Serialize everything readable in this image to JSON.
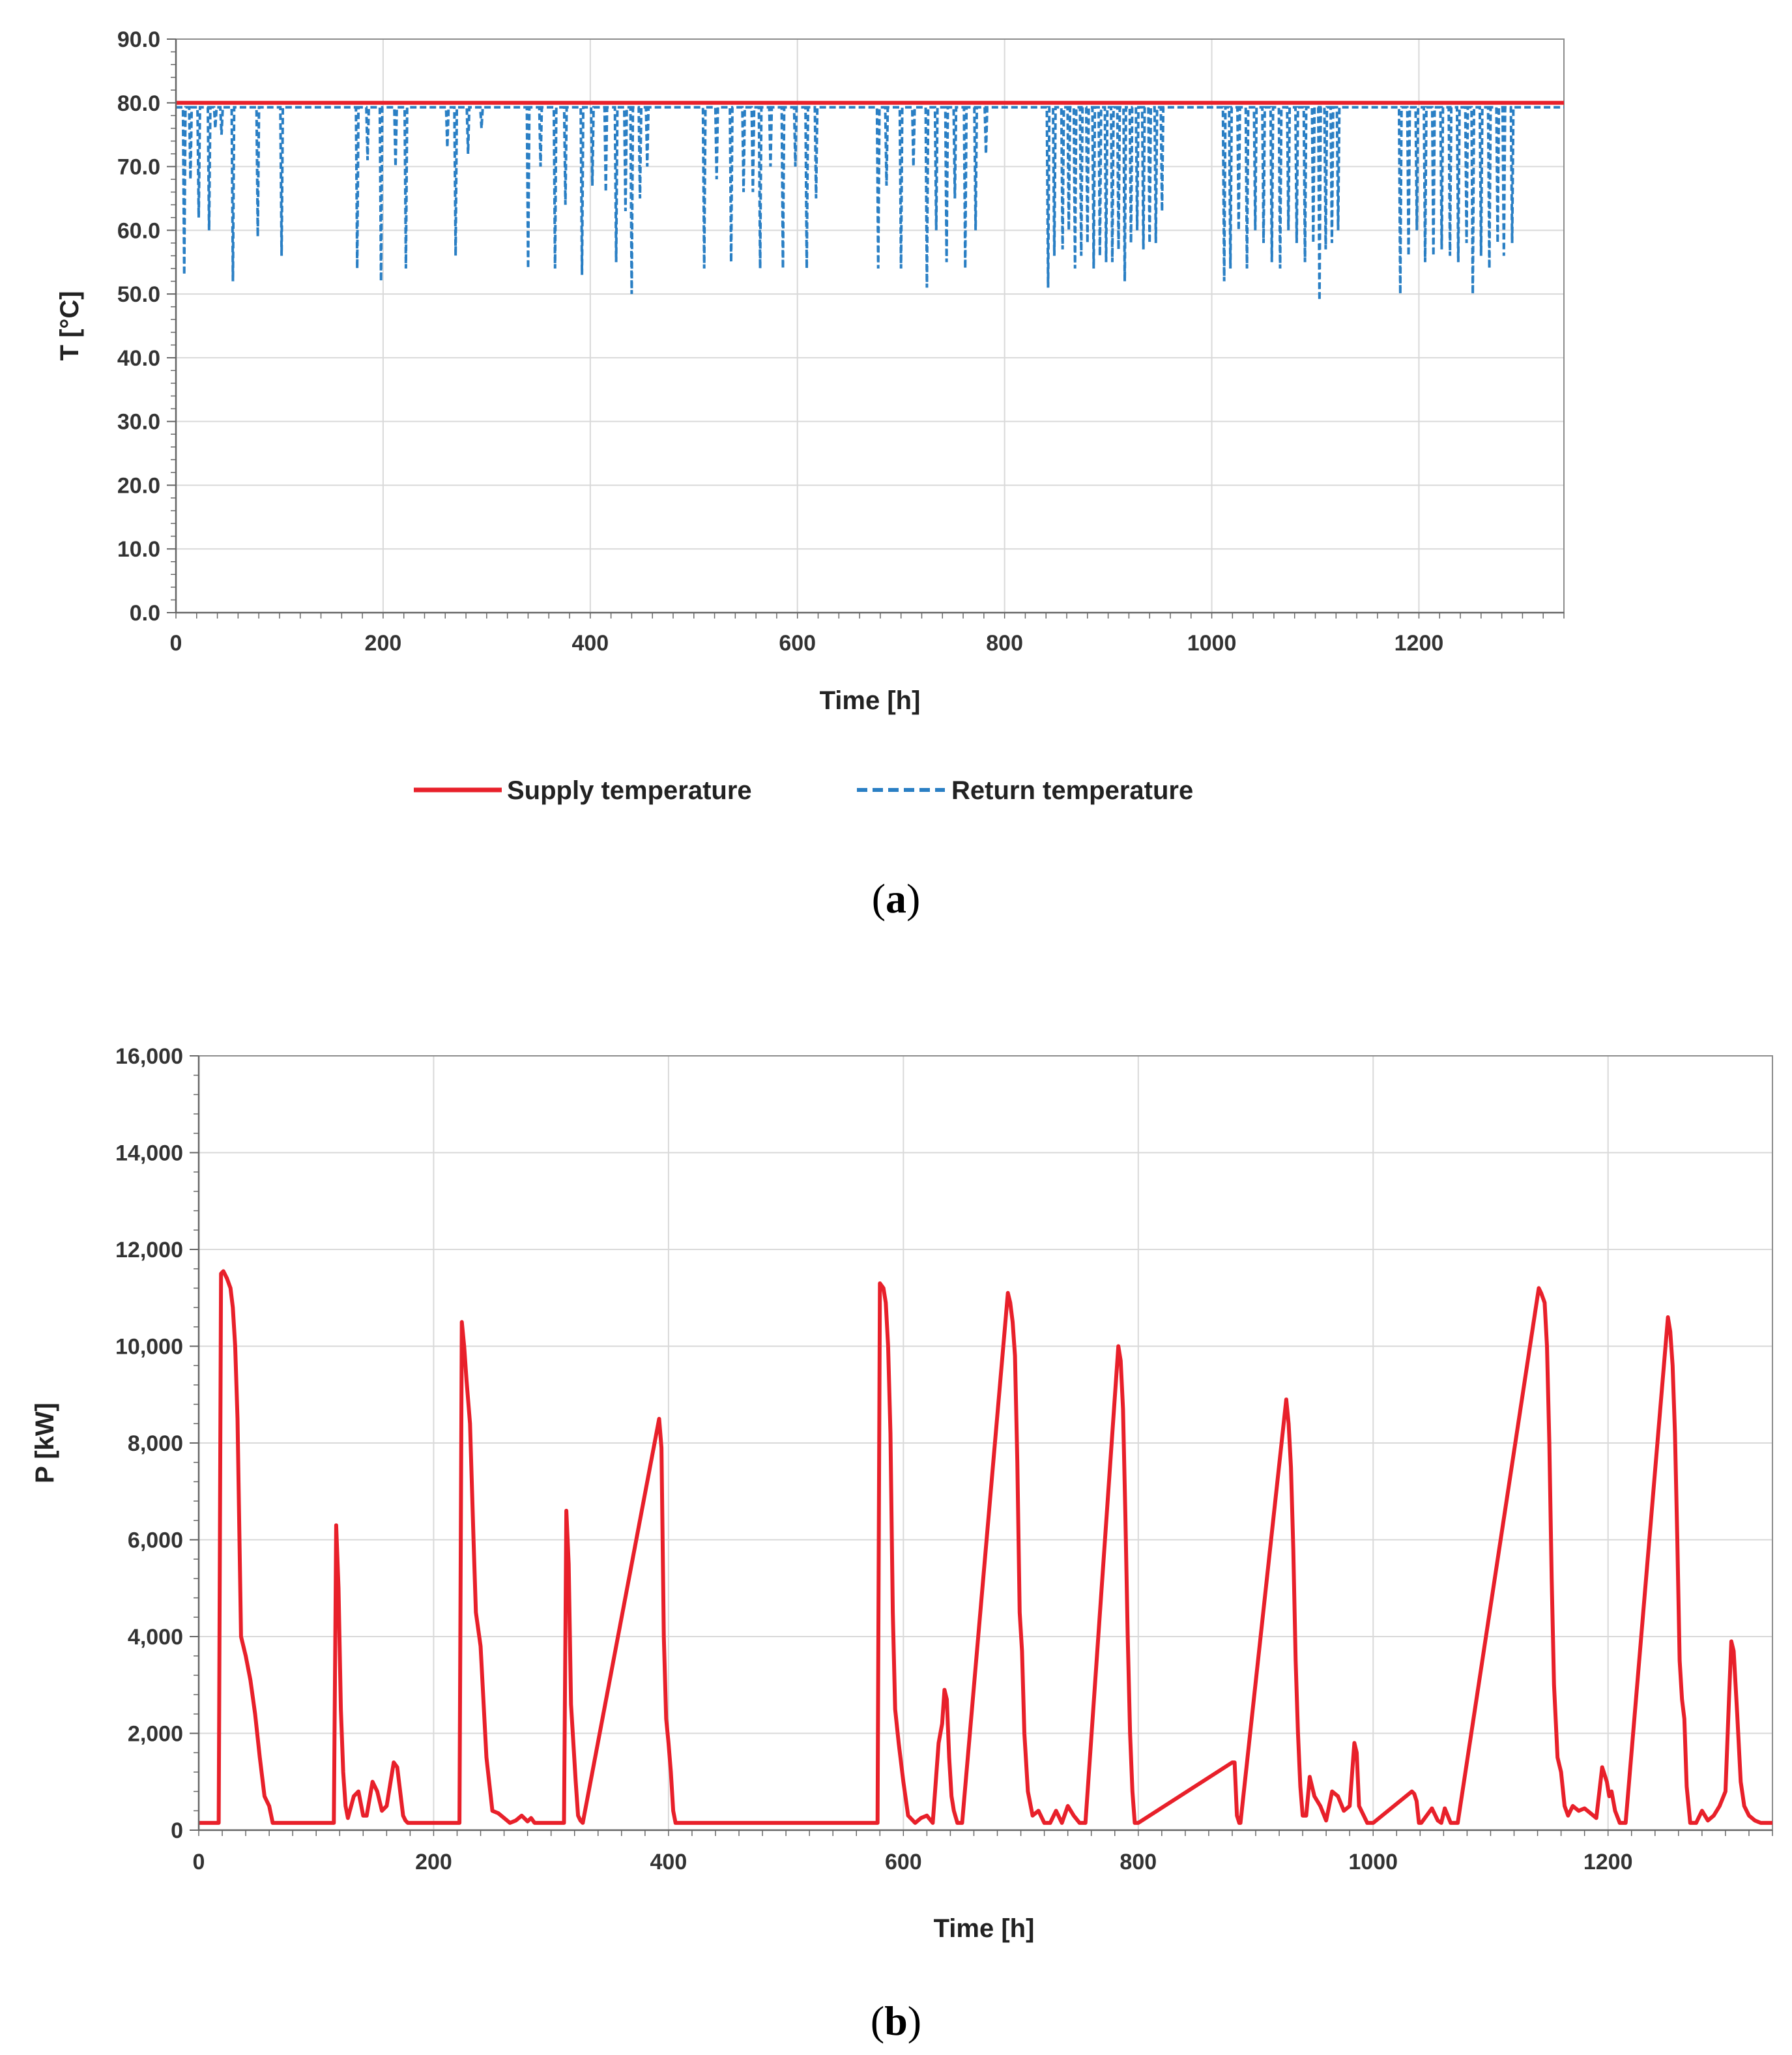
{
  "chart_data": [
    {
      "type": "line",
      "caption_open": "(",
      "caption_letter": "a",
      "caption_close": ")",
      "xlabel": "Time [h]",
      "ylabel": "T [°C]",
      "xlim": [
        0,
        1340
      ],
      "ylim": [
        0,
        90
      ],
      "xticks": [
        "0",
        "200",
        "400",
        "600",
        "800",
        "1000",
        "1200"
      ],
      "xtick_values": [
        0,
        200,
        400,
        600,
        800,
        1000,
        1200
      ],
      "yticks": [
        "0.0",
        "10.0",
        "20.0",
        "30.0",
        "40.0",
        "50.0",
        "60.0",
        "70.0",
        "80.0",
        "90.0"
      ],
      "ytick_values": [
        0,
        10,
        20,
        30,
        40,
        50,
        60,
        70,
        80,
        90
      ],
      "grid": true,
      "legend_position": "bottom",
      "series": [
        {
          "name": "Supply temperature",
          "color": "#e8202a",
          "style": "solid",
          "x": [
            0,
            1340
          ],
          "y": [
            80,
            80
          ]
        },
        {
          "name": "Return temperature",
          "color": "#2a7fc4",
          "style": "dashed",
          "baseline": 79.3,
          "x_start": 0,
          "x_end": 1340,
          "dips": [
            [
              8,
              53
            ],
            [
              14,
              68
            ],
            [
              22,
              62
            ],
            [
              32,
              60
            ],
            [
              38,
              76
            ],
            [
              44,
              75
            ],
            [
              55,
              52
            ],
            [
              79,
              59
            ],
            [
              102,
              56
            ],
            [
              175,
              54
            ],
            [
              185,
              71
            ],
            [
              198,
              52
            ],
            [
              212,
              70
            ],
            [
              222,
              54
            ],
            [
              262,
              73
            ],
            [
              270,
              56
            ],
            [
              282,
              72
            ],
            [
              295,
              76
            ],
            [
              340,
              54
            ],
            [
              352,
              70
            ],
            [
              366,
              54
            ],
            [
              376,
              64
            ],
            [
              392,
              53
            ],
            [
              402,
              67
            ],
            [
              415,
              66
            ],
            [
              425,
              55
            ],
            [
              434,
              63
            ],
            [
              440,
              50
            ],
            [
              448,
              65
            ],
            [
              455,
              70
            ],
            [
              510,
              54
            ],
            [
              522,
              68
            ],
            [
              536,
              55
            ],
            [
              548,
              66
            ],
            [
              557,
              66
            ],
            [
              564,
              54
            ],
            [
              574,
              70
            ],
            [
              586,
              54
            ],
            [
              598,
              70
            ],
            [
              609,
              54
            ],
            [
              618,
              65
            ],
            [
              678,
              54
            ],
            [
              686,
              67
            ],
            [
              700,
              54
            ],
            [
              712,
              70
            ],
            [
              725,
              51
            ],
            [
              734,
              60
            ],
            [
              744,
              55
            ],
            [
              752,
              65
            ],
            [
              762,
              54
            ],
            [
              772,
              60
            ],
            [
              782,
              72
            ],
            [
              842,
              51
            ],
            [
              848,
              56
            ],
            [
              856,
              57
            ],
            [
              862,
              60
            ],
            [
              868,
              54
            ],
            [
              874,
              56
            ],
            [
              880,
              58
            ],
            [
              886,
              54
            ],
            [
              892,
              56
            ],
            [
              898,
              55
            ],
            [
              904,
              55
            ],
            [
              910,
              57
            ],
            [
              916,
              52
            ],
            [
              922,
              58
            ],
            [
              928,
              60
            ],
            [
              934,
              57
            ],
            [
              940,
              58
            ],
            [
              946,
              58
            ],
            [
              952,
              63
            ],
            [
              1012,
              52
            ],
            [
              1018,
              54
            ],
            [
              1026,
              60
            ],
            [
              1034,
              54
            ],
            [
              1042,
              60
            ],
            [
              1050,
              58
            ],
            [
              1058,
              55
            ],
            [
              1066,
              54
            ],
            [
              1074,
              60
            ],
            [
              1082,
              58
            ],
            [
              1090,
              55
            ],
            [
              1098,
              58
            ],
            [
              1104,
              49
            ],
            [
              1110,
              57
            ],
            [
              1116,
              58
            ],
            [
              1122,
              60
            ],
            [
              1182,
              50
            ],
            [
              1190,
              56
            ],
            [
              1198,
              60
            ],
            [
              1206,
              55
            ],
            [
              1214,
              56
            ],
            [
              1222,
              57
            ],
            [
              1230,
              56
            ],
            [
              1238,
              55
            ],
            [
              1246,
              58
            ],
            [
              1252,
              50
            ],
            [
              1260,
              56
            ],
            [
              1268,
              54
            ],
            [
              1276,
              58
            ],
            [
              1282,
              56
            ],
            [
              1290,
              58
            ]
          ]
        }
      ]
    },
    {
      "type": "line",
      "caption_open": "(",
      "caption_letter": "b",
      "caption_close": ")",
      "xlabel": "Time [h]",
      "ylabel": "P [kW]",
      "xlim": [
        0,
        1340
      ],
      "ylim": [
        0,
        16000
      ],
      "xticks": [
        "0",
        "200",
        "400",
        "600",
        "800",
        "1000",
        "1200"
      ],
      "xtick_values": [
        0,
        200,
        400,
        600,
        800,
        1000,
        1200
      ],
      "yticks": [
        "0",
        "2,000",
        "4,000",
        "6,000",
        "8,000",
        "10,000",
        "12,000",
        "14,000",
        "16,000"
      ],
      "ytick_values": [
        0,
        2000,
        4000,
        6000,
        8000,
        10000,
        12000,
        14000,
        16000
      ],
      "grid": true,
      "series": [
        {
          "name": "P",
          "color": "#e8202a",
          "style": "solid",
          "x": [
            0,
            17,
            19,
            21,
            24,
            27,
            29,
            31,
            33,
            36,
            40,
            44,
            48,
            52,
            56,
            60,
            63,
            66,
            115,
            117,
            119,
            121,
            123,
            125,
            127,
            132,
            136,
            140,
            143,
            148,
            152,
            156,
            160,
            166,
            169,
            172,
            174,
            176,
            178,
            180,
            222,
            224,
            226,
            228,
            231,
            234,
            236,
            240,
            245,
            250,
            255,
            260,
            265,
            270,
            275,
            280,
            283,
            286,
            311,
            313,
            315,
            317,
            319,
            321,
            323,
            325,
            327,
            392,
            394,
            396,
            398,
            400,
            402,
            404,
            406,
            578,
            580,
            583,
            585,
            587,
            589,
            591,
            593,
            596,
            600,
            604,
            610,
            615,
            620,
            625,
            630,
            633,
            635,
            637,
            639,
            641,
            643,
            646,
            650,
            689,
            691,
            693,
            695,
            697,
            699,
            701,
            703,
            706,
            710,
            715,
            720,
            725,
            730,
            735,
            740,
            745,
            750,
            755,
            783,
            785,
            787,
            789,
            791,
            793,
            795,
            797,
            800,
            880,
            882,
            884,
            886,
            887,
            926,
            928,
            930,
            932,
            934,
            936,
            938,
            940,
            943,
            946,
            950,
            955,
            960,
            965,
            970,
            975,
            980,
            984,
            986,
            988,
            990,
            995,
            1000,
            1033,
            1035,
            1037,
            1039,
            1041,
            1050,
            1055,
            1058,
            1061,
            1066,
            1069,
            1072,
            1141,
            1143,
            1146,
            1148,
            1150,
            1152,
            1154,
            1157,
            1160,
            1163,
            1166,
            1170,
            1175,
            1180,
            1185,
            1190,
            1195,
            1199,
            1201,
            1203,
            1206,
            1210,
            1215,
            1251,
            1253,
            1255,
            1257,
            1259,
            1261,
            1263,
            1265,
            1267,
            1270,
            1275,
            1280,
            1285,
            1290,
            1295,
            1300,
            1303,
            1305,
            1307,
            1310,
            1313,
            1316,
            1320,
            1325,
            1330,
            1340
          ],
          "y": [
            150,
            150,
            11500,
            11550,
            11400,
            11200,
            10800,
            10000,
            8500,
            4000,
            3600,
            3100,
            2400,
            1500,
            700,
            500,
            150,
            150,
            150,
            6300,
            5000,
            2500,
            1200,
            500,
            250,
            700,
            800,
            300,
            300,
            1000,
            800,
            400,
            500,
            1400,
            1300,
            700,
            300,
            200,
            150,
            150,
            150,
            10500,
            10000,
            9300,
            8400,
            6000,
            4500,
            3800,
            1500,
            400,
            350,
            250,
            150,
            200,
            300,
            180,
            250,
            150,
            150,
            6600,
            5500,
            2600,
            1800,
            1000,
            300,
            200,
            150,
            8500,
            7900,
            4000,
            2300,
            1800,
            1200,
            400,
            150,
            150,
            11300,
            11200,
            10900,
            10000,
            8200,
            4500,
            2500,
            1800,
            1000,
            300,
            150,
            250,
            300,
            150,
            1800,
            2200,
            2900,
            2700,
            1500,
            700,
            400,
            150,
            150,
            11100,
            10900,
            10500,
            9800,
            7600,
            4500,
            3700,
            2000,
            800,
            300,
            400,
            150,
            150,
            400,
            150,
            500,
            300,
            150,
            150,
            10000,
            9700,
            8700,
            6500,
            4000,
            2000,
            800,
            150,
            150,
            1400,
            1400,
            300,
            150,
            150,
            8900,
            8400,
            7500,
            5800,
            3500,
            2000,
            900,
            300,
            300,
            1100,
            700,
            500,
            200,
            800,
            700,
            400,
            500,
            1800,
            1600,
            500,
            400,
            150,
            150,
            800,
            750,
            600,
            150,
            150,
            450,
            200,
            150,
            450,
            150,
            150,
            150,
            11200,
            11100,
            10900,
            10000,
            8000,
            5200,
            3000,
            1500,
            1200,
            500,
            300,
            500,
            400,
            450,
            350,
            250,
            1300,
            1000,
            700,
            800,
            400,
            150,
            150,
            10600,
            10300,
            9600,
            8200,
            6000,
            3500,
            2700,
            2300,
            900,
            150,
            150,
            400,
            200,
            300,
            500,
            800,
            2700,
            3900,
            3700,
            2400,
            1000,
            500,
            300,
            200,
            150,
            150
          ]
        }
      ]
    }
  ]
}
